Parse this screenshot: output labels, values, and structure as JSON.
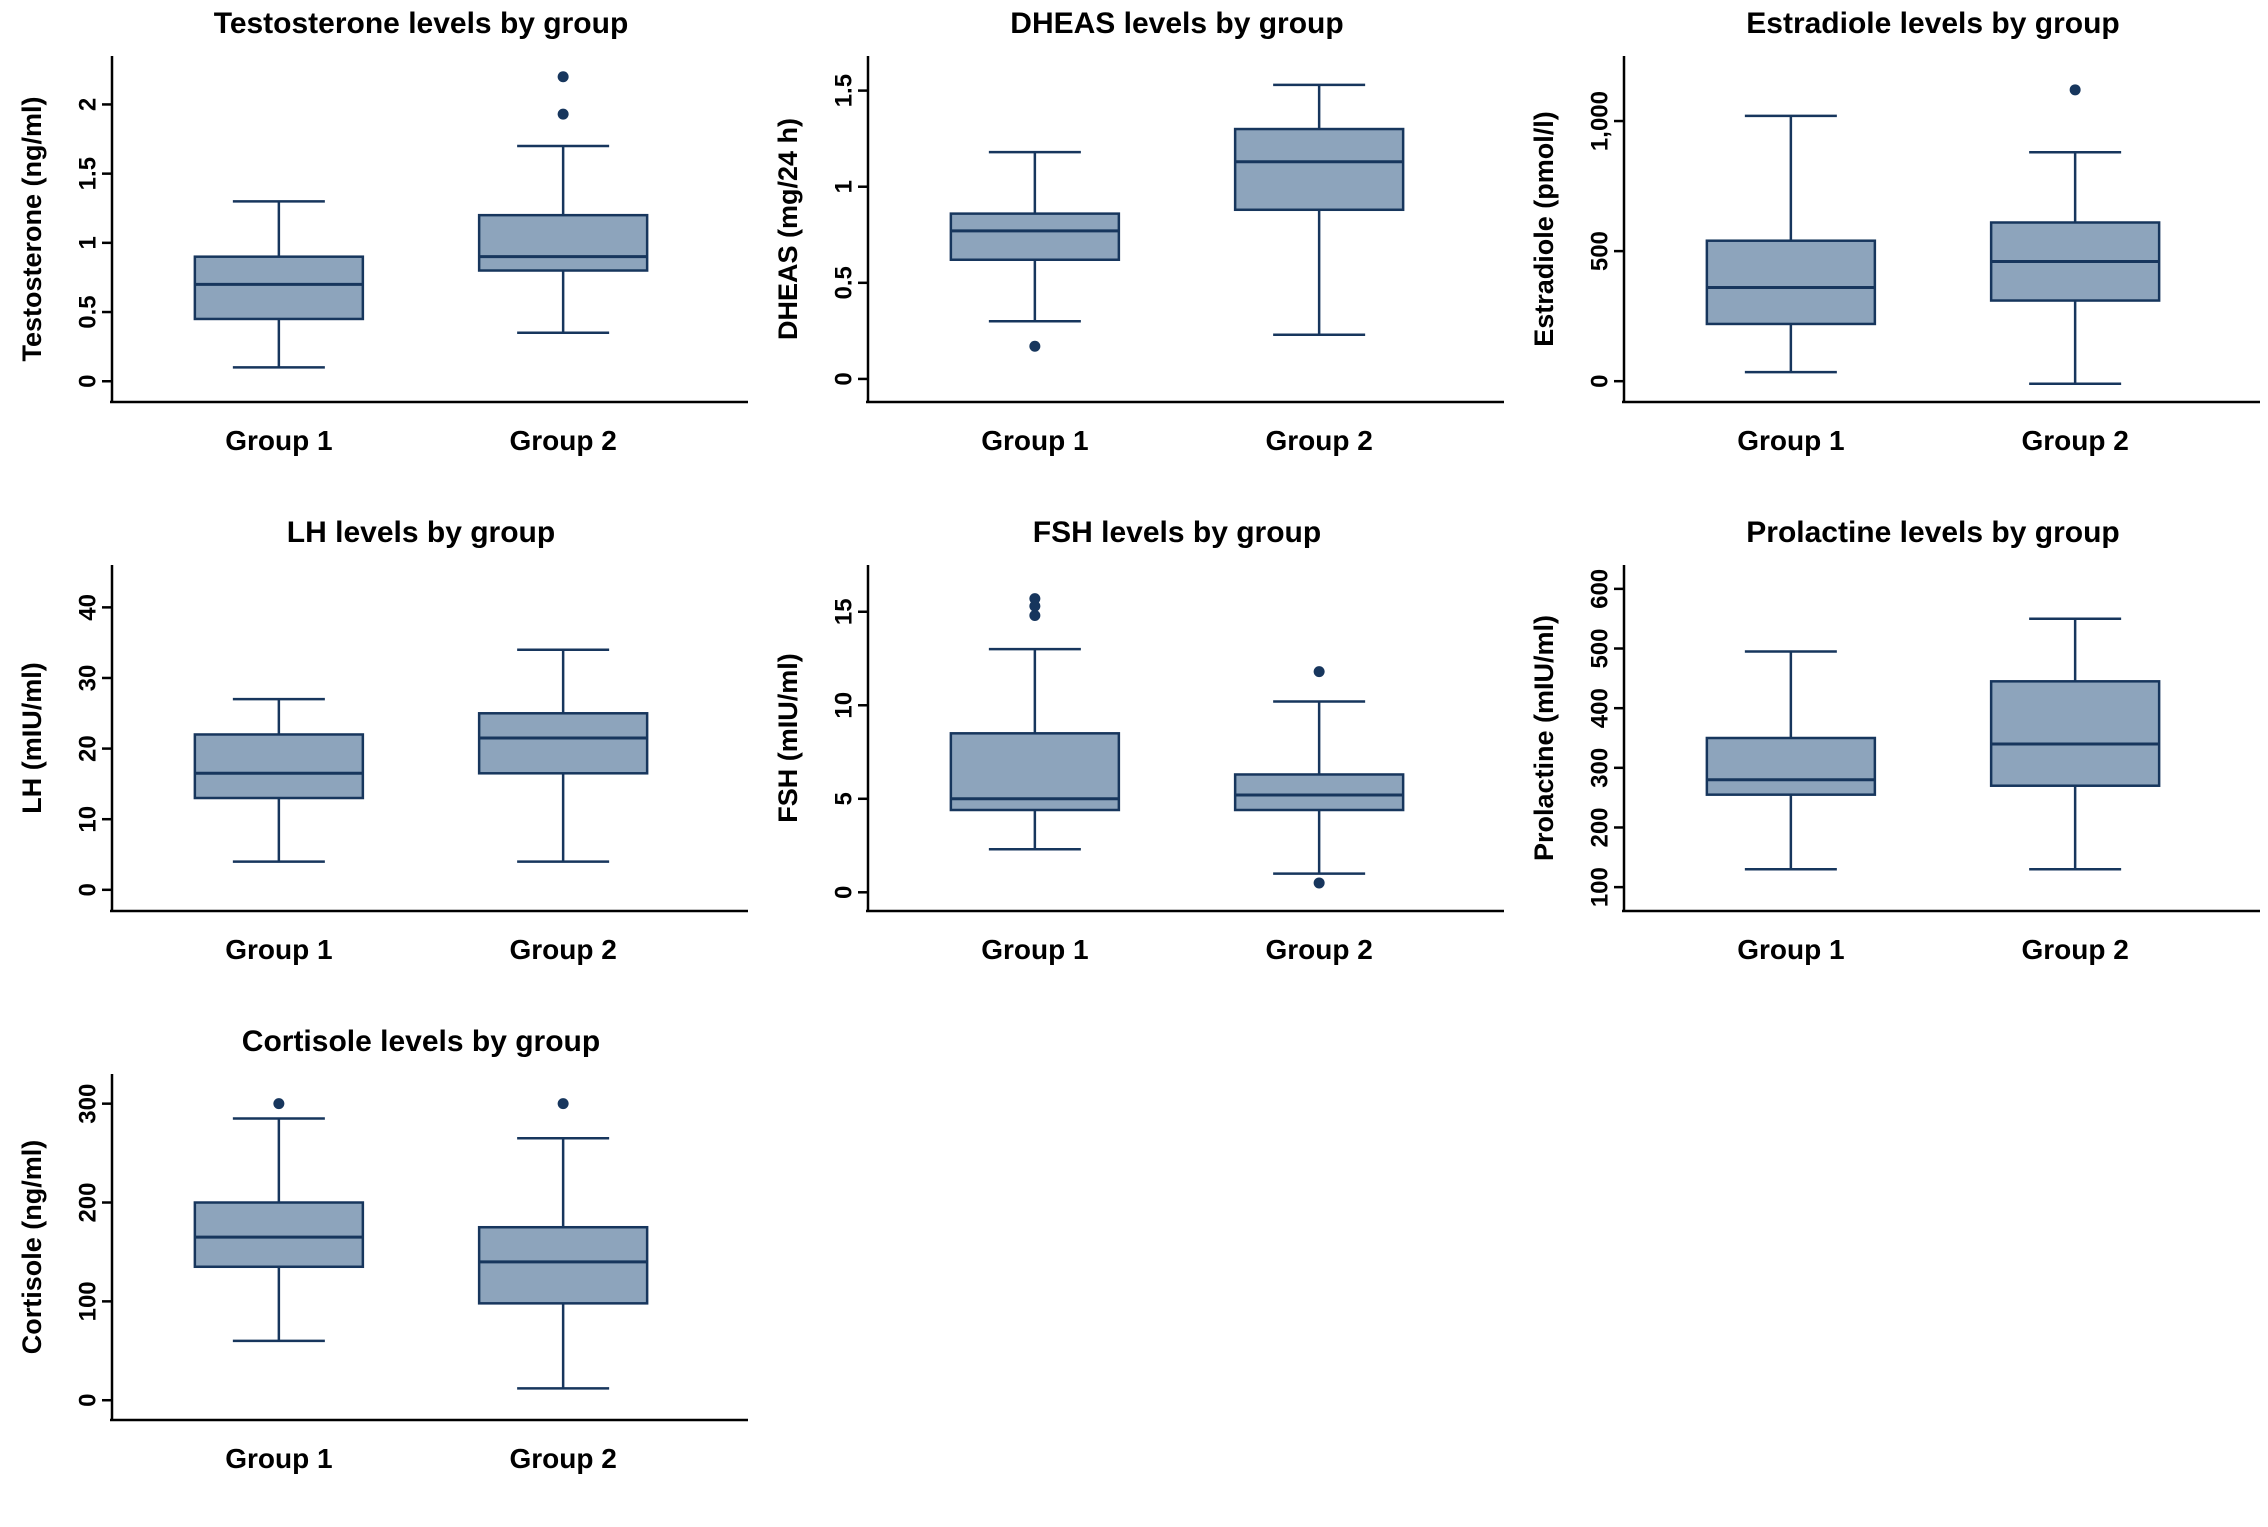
{
  "page": {
    "background": "#ffffff"
  },
  "style": {
    "box_fill": "#8da4bc",
    "box_stroke": "#17365d",
    "median_color": "#17365d",
    "outlier_color": "#17365d",
    "axis_color": "#000000"
  },
  "chart_data": [
    {
      "type": "box",
      "title": "Testosterone levels by group",
      "ylabel": "Testosterone (ng/ml)",
      "ylim": [
        -0.15,
        2.35
      ],
      "ytick_values": [
        0,
        0.5,
        1,
        1.5,
        2
      ],
      "ytick_labels": [
        "0",
        "0.5",
        "1",
        "1.5",
        "2"
      ],
      "groups": [
        {
          "label": "Group 1",
          "low": 0.1,
          "q1": 0.45,
          "median": 0.7,
          "q3": 0.9,
          "high": 1.3,
          "outliers": []
        },
        {
          "label": "Group 2",
          "low": 0.35,
          "q1": 0.8,
          "median": 0.9,
          "q3": 1.2,
          "high": 1.7,
          "outliers": [
            1.93,
            2.2
          ]
        }
      ]
    },
    {
      "type": "box",
      "title": "DHEAS levels by group",
      "ylabel": "DHEAS (mg/24 h)",
      "ylim": [
        -0.12,
        1.68
      ],
      "ytick_values": [
        0,
        0.5,
        1,
        1.5
      ],
      "ytick_labels": [
        "0",
        "0.5",
        "1",
        "1.5"
      ],
      "groups": [
        {
          "label": "Group 1",
          "low": 0.3,
          "q1": 0.62,
          "median": 0.77,
          "q3": 0.86,
          "high": 1.18,
          "outliers": [
            0.17
          ]
        },
        {
          "label": "Group 2",
          "low": 0.23,
          "q1": 0.88,
          "median": 1.13,
          "q3": 1.3,
          "high": 1.53,
          "outliers": []
        }
      ]
    },
    {
      "type": "box",
      "title": "Estradiole levels by group",
      "ylabel": "Estradiole (pmol/l)",
      "ylim": [
        -80,
        1250
      ],
      "ytick_values": [
        0,
        500,
        1000
      ],
      "ytick_labels": [
        "0",
        "500",
        "1,000"
      ],
      "groups": [
        {
          "label": "Group 1",
          "low": 35,
          "q1": 220,
          "median": 360,
          "q3": 540,
          "high": 1020,
          "outliers": []
        },
        {
          "label": "Group 2",
          "low": -10,
          "q1": 310,
          "median": 460,
          "q3": 610,
          "high": 880,
          "outliers": [
            1120
          ]
        }
      ]
    },
    {
      "type": "box",
      "title": "LH levels by group",
      "ylabel": "LH (mIU/ml)",
      "ylim": [
        -3,
        46
      ],
      "ytick_values": [
        0,
        10,
        20,
        30,
        40
      ],
      "ytick_labels": [
        "0",
        "10",
        "20",
        "30",
        "40"
      ],
      "groups": [
        {
          "label": "Group 1",
          "low": 4,
          "q1": 13,
          "median": 16.5,
          "q3": 22,
          "high": 27,
          "outliers": []
        },
        {
          "label": "Group 2",
          "low": 4,
          "q1": 16.5,
          "median": 21.5,
          "q3": 25,
          "high": 34,
          "outliers": []
        }
      ]
    },
    {
      "type": "box",
      "title": "FSH levels by group",
      "ylabel": "FSH (mIU/ml)",
      "ylim": [
        -1,
        17.5
      ],
      "ytick_values": [
        0,
        5,
        10,
        15
      ],
      "ytick_labels": [
        "0",
        "5",
        "10",
        "15"
      ],
      "groups": [
        {
          "label": "Group 1",
          "low": 2.3,
          "q1": 4.4,
          "median": 5,
          "q3": 8.5,
          "high": 13,
          "outliers": [
            14.8,
            15.3,
            15.7
          ]
        },
        {
          "label": "Group 2",
          "low": 1,
          "q1": 4.4,
          "median": 5.2,
          "q3": 6.3,
          "high": 10.2,
          "outliers": [
            0.5,
            11.8
          ]
        }
      ]
    },
    {
      "type": "box",
      "title": "Prolactine levels by group",
      "ylabel": "Prolactine (mIU/ml)",
      "ylim": [
        60,
        640
      ],
      "ytick_values": [
        100,
        200,
        300,
        400,
        500,
        600
      ],
      "ytick_labels": [
        "100",
        "200",
        "300",
        "400",
        "500",
        "600"
      ],
      "groups": [
        {
          "label": "Group 1",
          "low": 130,
          "q1": 255,
          "median": 280,
          "q3": 350,
          "high": 495,
          "outliers": []
        },
        {
          "label": "Group 2",
          "low": 130,
          "q1": 270,
          "median": 340,
          "q3": 445,
          "high": 550,
          "outliers": []
        }
      ]
    },
    {
      "type": "box",
      "title": "Cortisole levels by group",
      "ylabel": "Cortisole (ng/ml)",
      "ylim": [
        -20,
        330
      ],
      "ytick_values": [
        0,
        100,
        200,
        300
      ],
      "ytick_labels": [
        "0",
        "100",
        "200",
        "300"
      ],
      "groups": [
        {
          "label": "Group 1",
          "low": 60,
          "q1": 135,
          "median": 165,
          "q3": 200,
          "high": 285,
          "outliers": [
            300
          ]
        },
        {
          "label": "Group 2",
          "low": 12,
          "q1": 98,
          "median": 140,
          "q3": 175,
          "high": 265,
          "outliers": [
            300
          ]
        }
      ]
    }
  ]
}
